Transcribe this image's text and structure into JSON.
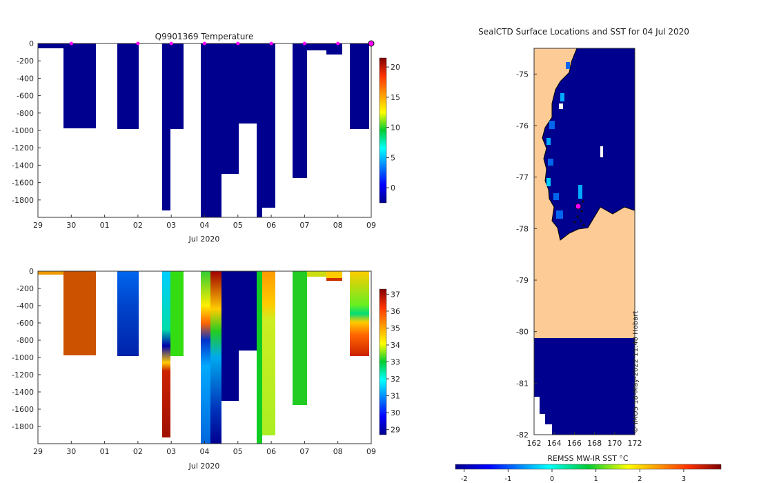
{
  "chart_data": [
    {
      "type": "heatmap",
      "name": "temperature-section",
      "title": "Q9901369  Temperature",
      "xlabel": "Jul 2020",
      "x_ticks": [
        "29",
        "30",
        "01",
        "02",
        "03",
        "04",
        "05",
        "06",
        "07",
        "08",
        "09"
      ],
      "y_ticks": [
        "0",
        "-200",
        "-400",
        "-600",
        "-800",
        "-1000",
        "-1200",
        "-1400",
        "-1600",
        "-1800"
      ],
      "ylim": [
        -2000,
        0
      ],
      "colorbar": {
        "ticks": [
          "20",
          "15",
          "10",
          "5",
          "0"
        ],
        "range": [
          -2.5,
          21.5
        ]
      },
      "colors": {
        "deep": "#00008f",
        "surface_marker": "#ff00ff"
      },
      "profiles_value_degC": -1.8,
      "surface_markers_day": [
        30,
        2,
        3,
        4,
        5,
        6,
        7,
        8,
        9
      ]
    },
    {
      "type": "heatmap",
      "name": "salinity-section",
      "title": "",
      "xlabel": "Jul 2020",
      "x_ticks": [
        "29",
        "30",
        "01",
        "02",
        "03",
        "04",
        "05",
        "06",
        "07",
        "08",
        "09"
      ],
      "y_ticks": [
        "0",
        "-200",
        "-400",
        "-600",
        "-800",
        "-1000",
        "-1200",
        "-1400",
        "-1600",
        "-1800"
      ],
      "ylim": [
        -2000,
        0
      ],
      "colorbar": {
        "ticks": [
          "37",
          "36",
          "35",
          "34",
          "33",
          "32",
          "31",
          "30",
          "29"
        ],
        "range": [
          28.7,
          37.3
        ]
      }
    },
    {
      "type": "map",
      "name": "sst-map",
      "title": "SealCTD Surface Locations and SST for 04 Jul 2020",
      "x_ticks": [
        "162",
        "164",
        "166",
        "168",
        "170",
        "172"
      ],
      "y_ticks": [
        "-75",
        "-76",
        "-77",
        "-78",
        "-79",
        "-80",
        "-81",
        "-82"
      ],
      "xlim": [
        162,
        172
      ],
      "ylim": [
        -82,
        -74.5
      ],
      "colorbar_label": "REMSS MW-IR SST °C",
      "colorbar_ticks": [
        "-2",
        "-1",
        "0",
        "1",
        "2",
        "3"
      ],
      "colors": {
        "land": "#fccb96",
        "ocean": "#00008f",
        "current_position": "#ff00ff"
      },
      "credit": "© IMOS 18-May-2022 11:48 Hobart"
    }
  ]
}
